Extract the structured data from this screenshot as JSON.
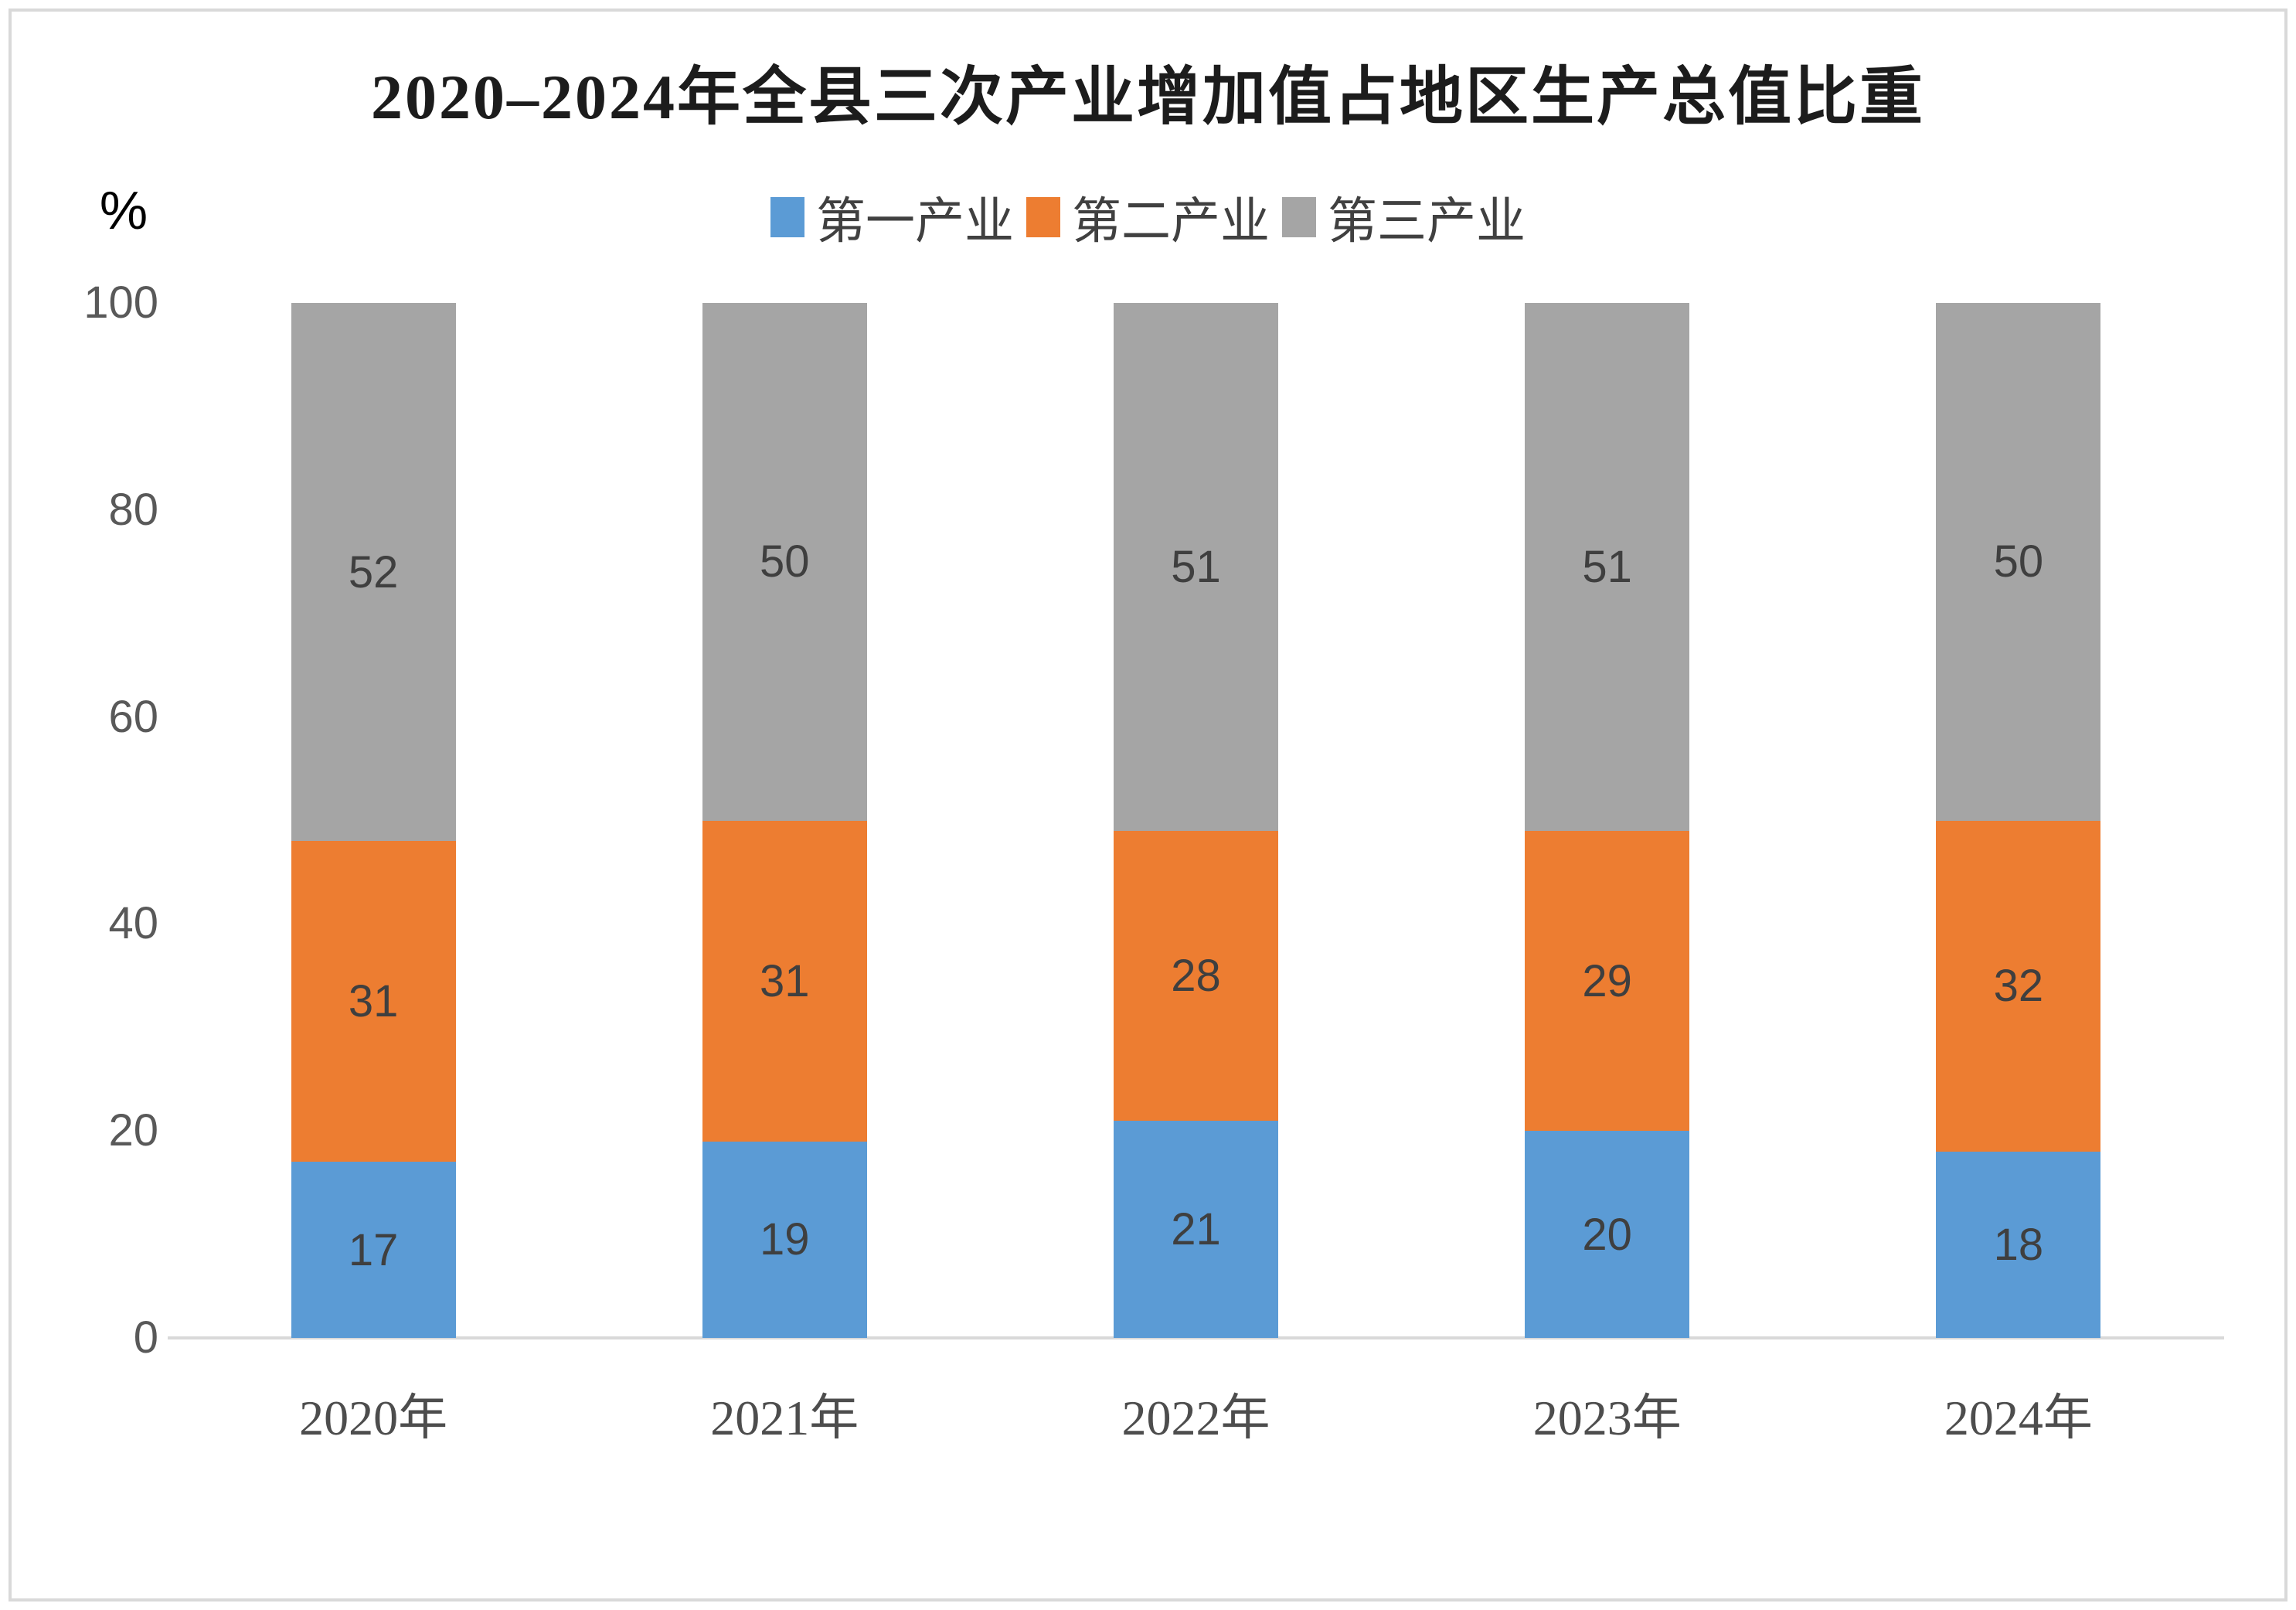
{
  "chart_data": {
    "type": "bar",
    "stacked": true,
    "title": "2020–2024年全县三次产业增加值占地区生产总值比重",
    "ylabel": "%",
    "xlabel": "",
    "categories": [
      "2020年",
      "2021年",
      "2022年",
      "2023年",
      "2024年"
    ],
    "series": [
      {
        "name": "第一产业",
        "color": "#5B9BD5",
        "values": [
          17,
          19,
          21,
          20,
          18
        ]
      },
      {
        "name": "第二产业",
        "color": "#ED7D31",
        "values": [
          31,
          31,
          28,
          29,
          32
        ]
      },
      {
        "name": "第三产业",
        "color": "#A5A5A5",
        "values": [
          52,
          50,
          51,
          51,
          50
        ]
      }
    ],
    "ylim": [
      0,
      100
    ],
    "yticks": [
      0,
      20,
      40,
      60,
      80,
      100
    ],
    "grid": false,
    "legend_position": "top",
    "data_labels": true
  },
  "styles": {
    "background": "#ffffff",
    "frame_border": "#d9d9d9",
    "axis_line": "#d9d9d9",
    "tick_label_color": "#595959",
    "x_label_color": "#4d4d4d",
    "data_label_color": "#3f3f3f",
    "title_color": "#1c1c1c",
    "legend_text_color": "#404040"
  }
}
